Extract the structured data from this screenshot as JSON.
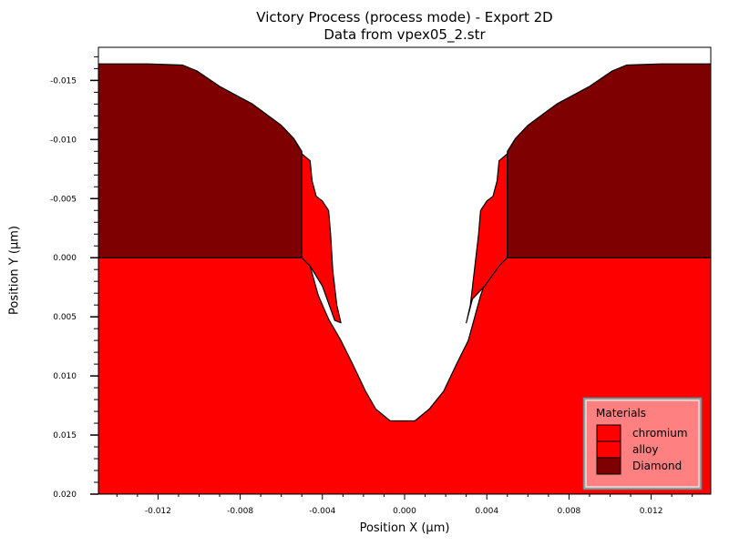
{
  "chart_data": {
    "type": "area",
    "title": "Victory Process  (process mode) - Export 2D",
    "subtitle": "Data from vpex05_2.str",
    "xlabel": "Position X (µm)",
    "ylabel": "Position Y (µm)",
    "xlim": [
      -0.0149,
      0.0149
    ],
    "ylim": [
      -0.0178,
      0.02
    ],
    "y_inverted": true,
    "x_ticks": [
      "-0.012",
      "-0.008",
      "-0.004",
      "0.000",
      "0.004",
      "0.008",
      "0.012"
    ],
    "x_tick_values": [
      -0.012,
      -0.008,
      -0.004,
      0.0,
      0.004,
      0.008,
      0.012
    ],
    "y_ticks": [
      "-0.015",
      "-0.010",
      "-0.005",
      "0.000",
      "0.005",
      "0.010",
      "0.015",
      "0.020"
    ],
    "y_tick_values": [
      -0.015,
      -0.01,
      -0.005,
      0.0,
      0.005,
      0.01,
      0.015,
      0.02
    ],
    "grid": false,
    "legend_position": "bottom-right",
    "legend_title": "Materials",
    "series": [
      {
        "name": "chromium",
        "color": "#ff0000",
        "polygons": [
          [
            [
              -0.0149,
              0.02
            ],
            [
              -0.0149,
              0.0
            ],
            [
              -0.005,
              0.0
            ],
            [
              -0.0046,
              0.0007
            ],
            [
              -0.0042,
              0.0032
            ],
            [
              -0.0037,
              0.0052
            ],
            [
              -0.0031,
              0.007
            ],
            [
              -0.0025,
              0.0091
            ],
            [
              -0.0019,
              0.0113
            ],
            [
              -0.0014,
              0.0128
            ],
            [
              -0.0007,
              0.0138
            ],
            [
              0.0005,
              0.0138
            ],
            [
              0.0012,
              0.0128
            ],
            [
              0.0019,
              0.0113
            ],
            [
              0.0025,
              0.0091
            ],
            [
              0.0031,
              0.007
            ],
            [
              0.0037,
              0.0032
            ],
            [
              0.0042,
              0.0007
            ],
            [
              0.0046,
              0.0
            ],
            [
              0.0149,
              0.0
            ],
            [
              0.0149,
              0.02
            ]
          ]
        ]
      },
      {
        "name": "alloy",
        "color": "#ff0000",
        "polygons": [
          [
            [
              -0.005,
              0.0
            ],
            [
              -0.005,
              -0.0088
            ],
            [
              -0.0046,
              -0.0082
            ],
            [
              -0.0045,
              -0.0065
            ],
            [
              -0.0043,
              -0.0052
            ],
            [
              -0.004,
              -0.0048
            ],
            [
              -0.0037,
              -0.004
            ],
            [
              -0.0036,
              -0.002
            ],
            [
              -0.0035,
              0.001
            ],
            [
              -0.0033,
              0.004
            ],
            [
              -0.0031,
              0.0055
            ],
            [
              -0.0034,
              0.0053
            ],
            [
              -0.004,
              0.0024
            ],
            [
              -0.0046,
              0.0007
            ]
          ],
          [
            [
              0.005,
              0.0
            ],
            [
              0.005,
              -0.0088
            ],
            [
              0.0046,
              -0.0082
            ],
            [
              0.0045,
              -0.0065
            ],
            [
              0.0043,
              -0.0052
            ],
            [
              0.004,
              -0.0048
            ],
            [
              0.0037,
              -0.004
            ],
            [
              0.0036,
              -0.002
            ],
            [
              0.0034,
              0.001
            ],
            [
              0.0032,
              0.004
            ],
            [
              0.003,
              0.0055
            ],
            [
              0.0033,
              0.0035
            ],
            [
              0.0039,
              0.0024
            ],
            [
              0.0046,
              0.0007
            ]
          ]
        ]
      },
      {
        "name": "Diamond",
        "color": "#7f0000",
        "polygons": [
          [
            [
              -0.0149,
              0.0
            ],
            [
              -0.0149,
              -0.0164
            ],
            [
              -0.0125,
              -0.0164
            ],
            [
              -0.0108,
              -0.0163
            ],
            [
              -0.0101,
              -0.0158
            ],
            [
              -0.009,
              -0.0145
            ],
            [
              -0.0074,
              -0.013
            ],
            [
              -0.006,
              -0.0112
            ],
            [
              -0.0054,
              -0.0101
            ],
            [
              -0.005,
              -0.009
            ],
            [
              -0.005,
              0.0
            ]
          ],
          [
            [
              0.0149,
              0.0
            ],
            [
              0.0149,
              -0.0164
            ],
            [
              0.0125,
              -0.0164
            ],
            [
              0.0108,
              -0.0163
            ],
            [
              0.0101,
              -0.0158
            ],
            [
              0.009,
              -0.0145
            ],
            [
              0.0074,
              -0.013
            ],
            [
              0.006,
              -0.0112
            ],
            [
              0.0054,
              -0.0101
            ],
            [
              0.005,
              -0.009
            ],
            [
              0.005,
              0.0
            ]
          ]
        ]
      }
    ]
  }
}
